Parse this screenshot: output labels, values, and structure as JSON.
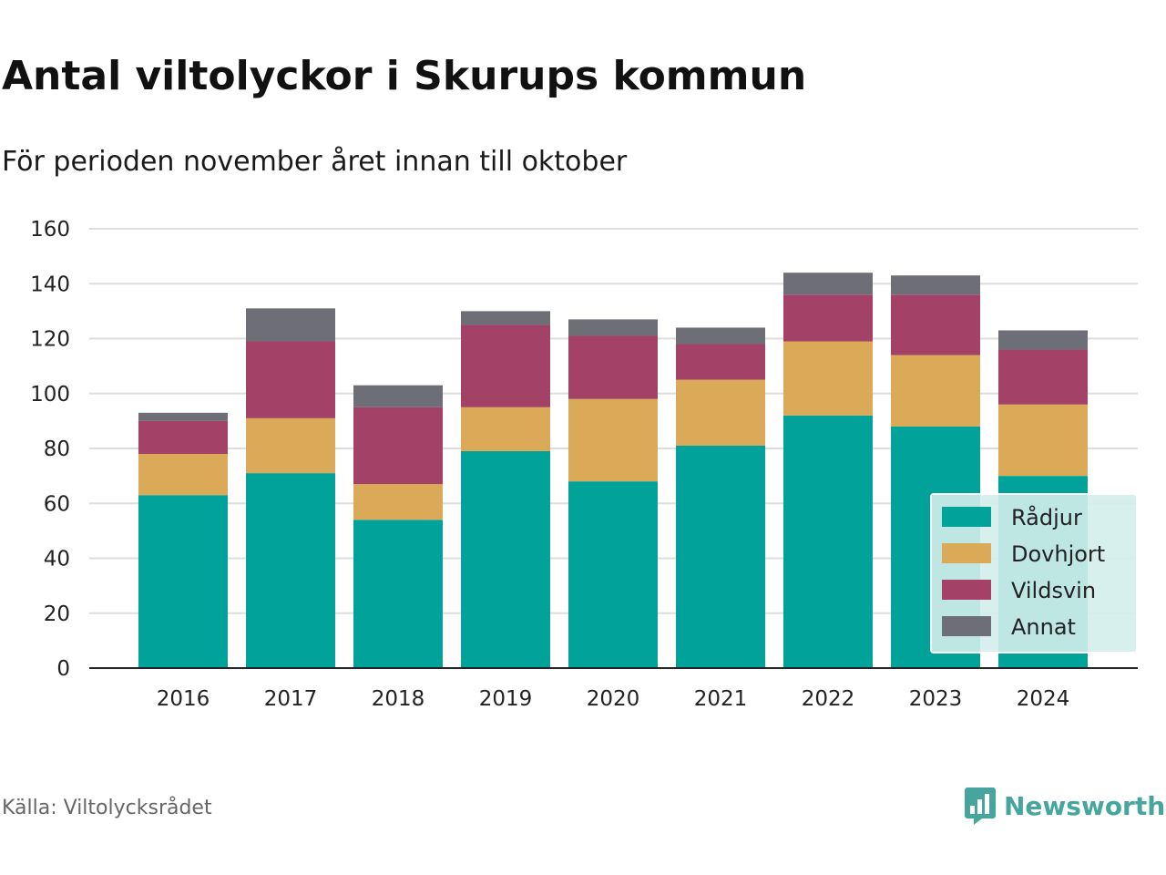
{
  "chart_data": {
    "type": "bar",
    "stacked": true,
    "title": "Antal viltolyckor i Skurups kommun",
    "subtitle": "För perioden november året innan till oktober",
    "xlabel": "",
    "ylabel": "",
    "categories": [
      "2016",
      "2017",
      "2018",
      "2019",
      "2020",
      "2021",
      "2022",
      "2023",
      "2024"
    ],
    "series": [
      {
        "name": "Rådjur",
        "color": "#00a29a",
        "values": [
          63,
          71,
          54,
          79,
          68,
          81,
          92,
          88,
          70
        ]
      },
      {
        "name": "Dovhjort",
        "color": "#dbaa58",
        "values": [
          15,
          20,
          13,
          16,
          30,
          24,
          27,
          26,
          26
        ]
      },
      {
        "name": "Vildsvin",
        "color": "#a44166",
        "values": [
          12,
          28,
          28,
          30,
          23,
          13,
          17,
          22,
          20
        ]
      },
      {
        "name": "Annat",
        "color": "#6e6e76",
        "values": [
          3,
          12,
          8,
          5,
          6,
          6,
          8,
          7,
          7
        ]
      }
    ],
    "ylim": [
      0,
      160
    ],
    "yticks": [
      "0",
      "20",
      "40",
      "60",
      "80",
      "100",
      "120",
      "140",
      "160"
    ],
    "grid": true,
    "legend_position": "bottom-right"
  },
  "footer": {
    "source": "Källa: Viltolycksrådet",
    "brand": "Newsworthy"
  },
  "colors": {
    "brand": "#46a59c",
    "grid": "#dddddd",
    "legend_background": "#d3eeec"
  },
  "icons": {
    "brand": "newsworthy-logo-icon"
  }
}
